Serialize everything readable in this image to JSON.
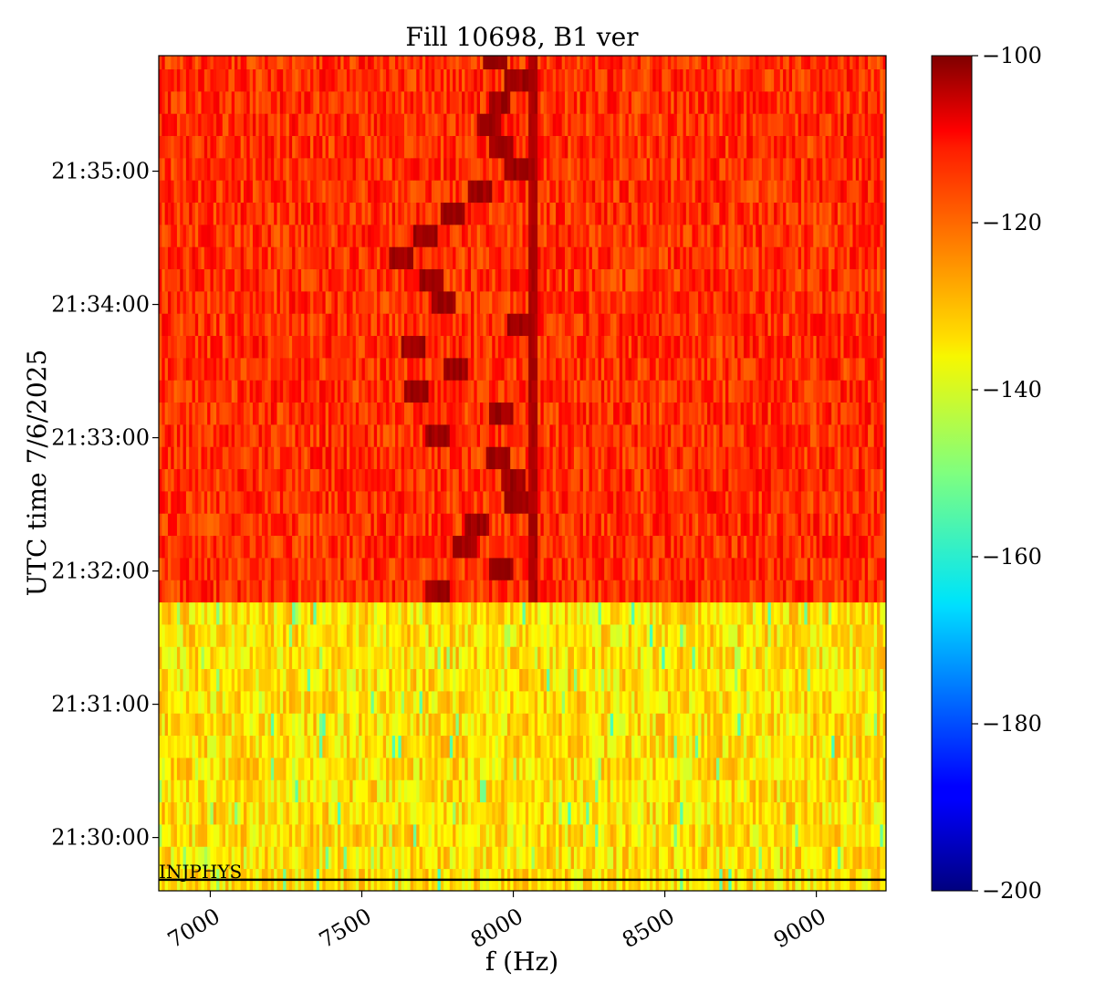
{
  "chart_data": {
    "type": "heatmap",
    "title": "Fill 10698, B1 ver",
    "xlabel": "f (Hz)",
    "ylabel": "UTC time 7/6/2025",
    "xlim": [
      6830,
      9230
    ],
    "x_ticks": [
      7000,
      7500,
      8000,
      8500,
      9000
    ],
    "x_tick_labels": [
      "7000",
      "7500",
      "8000",
      "8500",
      "9000"
    ],
    "y_ticks": [
      "21:35:00",
      "21:34:00",
      "21:33:00",
      "21:32:00",
      "21:31:00",
      "21:30:00"
    ],
    "time_range": [
      "21:29:36",
      "21:35:52"
    ],
    "rows": 38,
    "row_seconds": 10,
    "colorbar": {
      "colormap": "jet",
      "range": [
        -200,
        -100
      ],
      "ticks": [
        -100,
        -120,
        -140,
        -160,
        -180,
        -200
      ],
      "tick_labels": [
        "−100",
        "−120",
        "−140",
        "−160",
        "−180",
        "−200"
      ]
    },
    "regions": [
      {
        "time_range": [
          "21:29:36",
          "21:31:46"
        ],
        "level_dB": -135,
        "description": "quiet background"
      },
      {
        "time_range": [
          "21:31:46",
          "21:35:52"
        ],
        "level_dB": -117,
        "description": "elevated noise"
      }
    ],
    "steady_line": {
      "freq_hz": 8065,
      "level_dB": -106
    },
    "peak_track": {
      "level_dB": -101,
      "points": [
        {
          "time": "21:35:47",
          "freq_hz": 7940
        },
        {
          "time": "21:35:37",
          "freq_hz": 8010
        },
        {
          "time": "21:35:27",
          "freq_hz": 7955
        },
        {
          "time": "21:35:17",
          "freq_hz": 7920
        },
        {
          "time": "21:35:07",
          "freq_hz": 7960
        },
        {
          "time": "21:34:57",
          "freq_hz": 8010
        },
        {
          "time": "21:34:47",
          "freq_hz": 7890
        },
        {
          "time": "21:34:37",
          "freq_hz": 7800
        },
        {
          "time": "21:34:27",
          "freq_hz": 7710
        },
        {
          "time": "21:34:17",
          "freq_hz": 7630
        },
        {
          "time": "21:34:07",
          "freq_hz": 7730
        },
        {
          "time": "21:33:57",
          "freq_hz": 7770
        },
        {
          "time": "21:33:47",
          "freq_hz": 8020
        },
        {
          "time": "21:33:37",
          "freq_hz": 7670
        },
        {
          "time": "21:33:27",
          "freq_hz": 7810
        },
        {
          "time": "21:33:17",
          "freq_hz": 7680
        },
        {
          "time": "21:33:07",
          "freq_hz": 7960
        },
        {
          "time": "21:32:57",
          "freq_hz": 7750
        },
        {
          "time": "21:32:47",
          "freq_hz": 7950
        },
        {
          "time": "21:32:37",
          "freq_hz": 8000
        },
        {
          "time": "21:32:27",
          "freq_hz": 8010
        },
        {
          "time": "21:32:17",
          "freq_hz": 7880
        },
        {
          "time": "21:32:07",
          "freq_hz": 7840
        },
        {
          "time": "21:31:57",
          "freq_hz": 7960
        },
        {
          "time": "21:31:47",
          "freq_hz": 7750
        }
      ]
    },
    "annotations": [
      {
        "text": "INJPHYS",
        "time": "21:29:41",
        "freq_hz": 6830,
        "type": "horizontal-line"
      }
    ]
  }
}
